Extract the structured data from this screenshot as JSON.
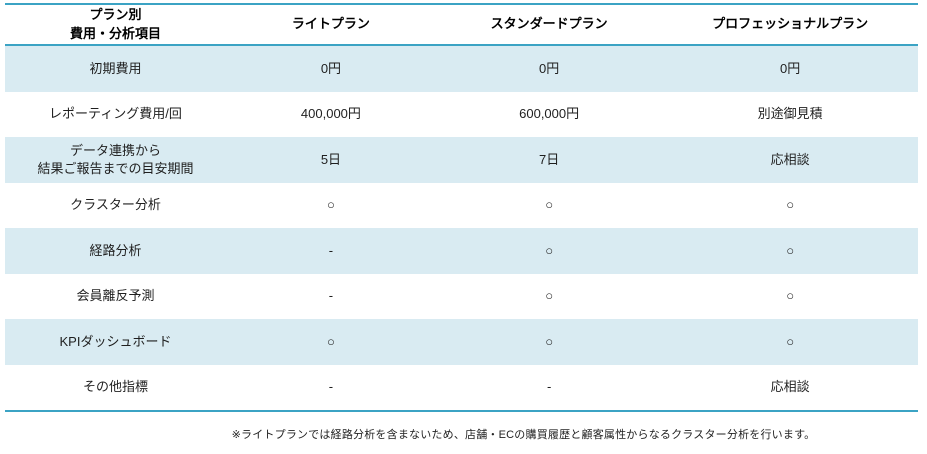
{
  "chart_data": {
    "type": "table",
    "columns": [
      "プラン別\n費用・分析項目",
      "ライトプラン",
      "スタンダードプラン",
      "プロフェッショナルプラン"
    ],
    "rows": [
      [
        "初期費用",
        "0円",
        "0円",
        "0円"
      ],
      [
        "レポーティング費用/回",
        "400,000円",
        "600,000円",
        "別途御見積"
      ],
      [
        "データ連携から\n結果ご報告までの目安期間",
        "5日",
        "7日",
        "応相談"
      ],
      [
        "クラスター分析",
        "○",
        "○",
        "○"
      ],
      [
        "経路分析",
        "-",
        "○",
        "○"
      ],
      [
        "会員離反予測",
        "-",
        "○",
        "○"
      ],
      [
        "KPIダッシュボード",
        "○",
        "○",
        "○"
      ],
      [
        "その他指標",
        "-",
        "-",
        "応相談"
      ]
    ],
    "row_highlight_indices": [
      0,
      2,
      4,
      6
    ],
    "legend_position": "none",
    "grid": "horizontal-bands"
  },
  "note": "※ライトプランでは経路分析を含まないため、店舗・ECの購買履歴と顧客属性からなるクラスター分析を行います。",
  "colors": {
    "accent_border": "#3ba3c4",
    "row_highlight": "#d9ebf2",
    "text": "#1f1f1f"
  }
}
